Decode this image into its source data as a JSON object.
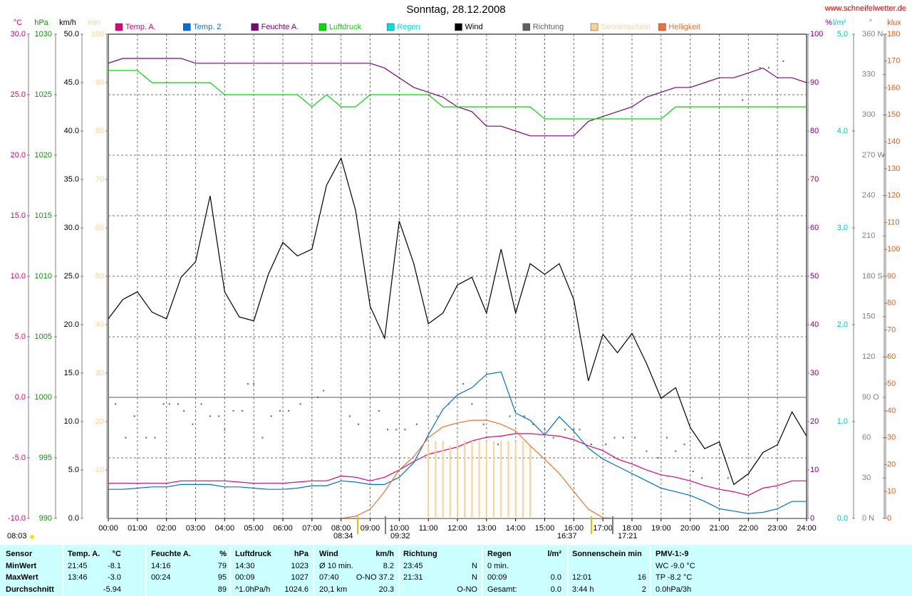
{
  "site": "www.schneifelwetter.de",
  "chart_data": {
    "type": "line",
    "title": "Sonntag, 28.12.2008",
    "grid": true,
    "xlim": [
      0,
      24
    ],
    "xticks": [
      {
        "value": 0,
        "label": "00:00"
      },
      {
        "value": 1,
        "label": "01:00"
      },
      {
        "value": 2,
        "label": "02:00"
      },
      {
        "value": 3,
        "label": "03:00"
      },
      {
        "value": 4,
        "label": "04:00"
      },
      {
        "value": 5,
        "label": "05:00"
      },
      {
        "value": 6,
        "label": "06:00"
      },
      {
        "value": 7,
        "label": "07:00"
      },
      {
        "value": 8,
        "label": "08:00"
      },
      {
        "value": 9,
        "label": "09:00"
      },
      {
        "value": 10,
        "label": "10:00"
      },
      {
        "value": 11,
        "label": "11:00"
      },
      {
        "value": 12,
        "label": "12:00"
      },
      {
        "value": 13,
        "label": "13:00"
      },
      {
        "value": 14,
        "label": "14:00"
      },
      {
        "value": 15,
        "label": "15:00"
      },
      {
        "value": 16,
        "label": "16:00"
      },
      {
        "value": 17,
        "label": "17:00"
      },
      {
        "value": 18,
        "label": "18:00"
      },
      {
        "value": 19,
        "label": "19:00"
      },
      {
        "value": 20,
        "label": "20:00"
      },
      {
        "value": 21,
        "label": "21:00"
      },
      {
        "value": 22,
        "label": "22:00"
      },
      {
        "value": 23,
        "label": "23:00"
      },
      {
        "value": 24,
        "label": "24:00"
      }
    ],
    "axes": [
      {
        "unit": "°C",
        "color": "#e0007a",
        "lim": [
          -10,
          30
        ],
        "ticks": [
          {
            "value": -10,
            "label": "-10.0"
          },
          {
            "value": -5,
            "label": "-5.0"
          },
          {
            "value": 0,
            "label": "0.0"
          },
          {
            "value": 5,
            "label": "5.0"
          },
          {
            "value": 10,
            "label": "10.0"
          },
          {
            "value": 15,
            "label": "15.0"
          },
          {
            "value": 20,
            "label": "20.0"
          },
          {
            "value": 25,
            "label": "25.0"
          },
          {
            "value": 30,
            "label": "30.0"
          }
        ]
      },
      {
        "unit": "hPa",
        "color": "#00a000",
        "lim": [
          990,
          1030
        ],
        "ticks": [
          990,
          995,
          1000,
          1005,
          1010,
          1015,
          1020,
          1025,
          1030
        ]
      },
      {
        "unit": "km/h",
        "color": "#000000",
        "lim": [
          0,
          50
        ],
        "ticks": [
          {
            "value": 0,
            "label": "0.0"
          },
          {
            "value": 5,
            "label": "5.0"
          },
          {
            "value": 10,
            "label": "10.0"
          },
          {
            "value": 15,
            "label": "15.0"
          },
          {
            "value": 20,
            "label": "20.0"
          },
          {
            "value": 25,
            "label": "25.0"
          },
          {
            "value": 30,
            "label": "30.0"
          },
          {
            "value": 35,
            "label": "35.0"
          },
          {
            "value": 40,
            "label": "40.0"
          },
          {
            "value": 45,
            "label": "45.0"
          },
          {
            "value": 50,
            "label": "50.0"
          }
        ]
      },
      {
        "unit": "min",
        "color": "#ffd090",
        "lim": [
          0,
          100
        ],
        "ticks": [
          10,
          20,
          30,
          40,
          50,
          60,
          70,
          80,
          90,
          100
        ]
      },
      {
        "unit": "%",
        "color": "#800080",
        "lim": [
          0,
          100
        ],
        "ticks": [
          0,
          10,
          20,
          30,
          40,
          50,
          60,
          70,
          80,
          90,
          100
        ]
      },
      {
        "unit": "l/m²",
        "color": "#00c8c8",
        "lim": [
          0,
          5
        ],
        "ticks": [
          {
            "value": 0,
            "label": "0.0"
          },
          {
            "value": 1,
            "label": "1.0"
          },
          {
            "value": 2,
            "label": "2.0"
          },
          {
            "value": 3,
            "label": "3.0"
          },
          {
            "value": 4,
            "label": "4.0"
          },
          {
            "value": 5,
            "label": "5.0"
          }
        ]
      },
      {
        "unit": "°",
        "color": "#808080",
        "lim": [
          0,
          360
        ],
        "ticks": [
          {
            "value": 0,
            "label": "0 N"
          },
          30,
          60,
          {
            "value": 90,
            "label": "90 O"
          },
          120,
          150,
          {
            "value": 180,
            "label": "180 S"
          },
          210,
          240,
          {
            "value": 270,
            "label": "270 W"
          },
          300,
          330,
          {
            "value": 360,
            "label": "360 N"
          }
        ]
      },
      {
        "unit": "klux",
        "color": "#e06020",
        "lim": [
          0,
          180
        ],
        "ticks": [
          0,
          10,
          20,
          30,
          40,
          50,
          60,
          70,
          80,
          90,
          100,
          110,
          120,
          130,
          140,
          150,
          160,
          170,
          180
        ]
      }
    ],
    "x": [
      0,
      0.5,
      1,
      1.5,
      2,
      2.5,
      3,
      3.5,
      4,
      4.5,
      5,
      5.5,
      6,
      6.5,
      7,
      7.5,
      8,
      8.5,
      9,
      9.5,
      10,
      10.5,
      11,
      11.5,
      12,
      12.5,
      13,
      13.5,
      14,
      14.5,
      15,
      15.5,
      16,
      16.5,
      17,
      17.5,
      18,
      18.5,
      19,
      19.5,
      20,
      20.5,
      21,
      21.5,
      22,
      22.5,
      23,
      23.5,
      24
    ],
    "series": [
      {
        "name": "Temp. A.",
        "color": "#e0007a",
        "axis": "°C",
        "values": [
          -7.1,
          -7.1,
          -7.1,
          -7.1,
          -7.1,
          -6.9,
          -6.9,
          -6.9,
          -6.9,
          -7.0,
          -7.1,
          -7.1,
          -7.1,
          -7.0,
          -6.9,
          -6.9,
          -6.5,
          -6.6,
          -6.9,
          -6.6,
          -6.0,
          -5.3,
          -4.7,
          -4.4,
          -4.1,
          -3.6,
          -3.3,
          -3.2,
          -3.0,
          -3.0,
          -3.1,
          -3.2,
          -3.5,
          -4.0,
          -4.4,
          -5.1,
          -5.5,
          -6.0,
          -6.4,
          -6.6,
          -6.9,
          -7.3,
          -7.6,
          -7.8,
          -8.1,
          -7.5,
          -7.3,
          -6.9,
          -6.9
        ]
      },
      {
        "name": "Temp. 2",
        "color": "#0070e0",
        "axis": "°C",
        "values": [
          -7.6,
          -7.6,
          -7.5,
          -7.4,
          -7.4,
          -7.2,
          -7.2,
          -7.2,
          -7.4,
          -7.4,
          -7.5,
          -7.6,
          -7.6,
          -7.5,
          -7.3,
          -7.3,
          -6.9,
          -7.0,
          -7.2,
          -7.2,
          -6.6,
          -5.4,
          -3.1,
          -1.0,
          0.2,
          0.8,
          1.9,
          2.1,
          -1.3,
          -1.9,
          -3.1,
          -1.6,
          -2.8,
          -4.2,
          -5.1,
          -5.7,
          -6.3,
          -6.9,
          -7.5,
          -7.8,
          -8.1,
          -8.6,
          -9.2,
          -9.4,
          -9.6,
          -9.5,
          -9.2,
          -8.6,
          -8.6
        ]
      },
      {
        "name": "Feuchte A.",
        "color": "#800080",
        "axis": "%",
        "values": [
          94,
          95,
          95,
          95,
          95,
          95,
          94,
          94,
          94,
          94,
          94,
          94,
          94,
          94,
          94,
          94,
          94,
          94,
          94,
          93,
          91,
          89,
          88,
          87,
          85,
          84,
          81,
          81,
          80,
          79,
          79,
          79,
          79,
          82,
          83,
          84,
          85,
          87,
          88,
          89,
          89,
          90,
          91,
          91,
          92,
          93,
          91,
          91,
          90
        ]
      },
      {
        "name": "Luftdruck",
        "color": "#00dd00",
        "axis": "hPa",
        "values": [
          1027,
          1027,
          1027,
          1026,
          1026,
          1026,
          1026,
          1026,
          1025,
          1025,
          1025,
          1025,
          1025,
          1025,
          1024,
          1025,
          1024,
          1024,
          1025,
          1025,
          1025,
          1025,
          1025,
          1024,
          1024,
          1024,
          1024,
          1024,
          1024,
          1024,
          1023,
          1023,
          1023,
          1023,
          1023,
          1023,
          1023,
          1023,
          1023,
          1024,
          1024,
          1024,
          1024,
          1024,
          1024,
          1024,
          1024,
          1024,
          1024
        ]
      },
      {
        "name": "Regen",
        "color": "#00e0e0",
        "axis": "l/m²",
        "values": [
          0,
          0,
          0,
          0,
          0,
          0,
          0,
          0,
          0,
          0,
          0,
          0,
          0,
          0,
          0,
          0,
          0,
          0,
          0,
          0,
          0,
          0,
          0,
          0,
          0,
          0,
          0,
          0,
          0,
          0,
          0,
          0,
          0,
          0,
          0,
          0,
          0,
          0,
          0,
          0,
          0,
          0,
          0,
          0,
          0,
          0,
          0,
          0,
          0
        ]
      },
      {
        "name": "Wind",
        "color": "#000000",
        "axis": "km/h",
        "values": [
          20.6,
          22.6,
          23.4,
          21.3,
          20.6,
          24.9,
          26.5,
          33.3,
          23.4,
          20.8,
          20.4,
          25.2,
          28.5,
          27.1,
          27.8,
          34.4,
          37.2,
          31.8,
          21.9,
          18.6,
          30.7,
          26.3,
          20.1,
          21.2,
          24.1,
          24.9,
          21.2,
          27.8,
          21.2,
          26.3,
          25.2,
          26.3,
          22.6,
          14.2,
          19.0,
          17.1,
          19.1,
          16.0,
          12.4,
          13.5,
          9.4,
          7.2,
          7.9,
          3.5,
          4.6,
          6.8,
          7.6,
          11.0,
          8.5
        ]
      },
      {
        "name": "Richtung",
        "color": "#606060",
        "axis": "°",
        "style": "dots",
        "x": [
          0.25,
          0.6,
          0.9,
          1.3,
          1.6,
          1.9,
          2.1,
          2.4,
          2.6,
          2.9,
          3.2,
          3.5,
          3.8,
          4.0,
          4.3,
          4.6,
          4.8,
          5.0,
          5.3,
          5.6,
          5.9,
          6.2,
          6.6,
          7.2,
          7.4,
          8.3,
          8.6,
          9.3,
          9.6,
          9.9,
          10.2,
          10.6,
          11.3,
          11.7,
          12.2,
          12.5,
          12.9,
          13.4,
          13.8,
          14.3,
          14.6,
          15.0,
          15.3,
          15.7,
          16.0,
          16.2,
          16.6,
          17.1,
          17.4,
          17.7,
          18.1,
          18.5,
          18.9,
          19.2,
          19.5,
          19.8,
          20.1,
          20.4,
          21.3,
          21.8,
          22.4,
          22.7,
          23.2
        ],
        "values": [
          85,
          60,
          76,
          60,
          60,
          85,
          85,
          85,
          80,
          70,
          85,
          76,
          76,
          66,
          80,
          80,
          100,
          100,
          60,
          76,
          80,
          80,
          85,
          90,
          95,
          76,
          70,
          80,
          66,
          66,
          66,
          70,
          76,
          85,
          100,
          85,
          70,
          55,
          76,
          76,
          70,
          66,
          60,
          66,
          66,
          66,
          55,
          55,
          60,
          60,
          60,
          50,
          45,
          60,
          50,
          55,
          35,
          30,
          30,
          311,
          335,
          335,
          340
        ]
      },
      {
        "name": "Sonnenschein",
        "color": "#ffd090",
        "axis": "min",
        "style": "bars",
        "x": [
          11,
          11.25,
          11.5,
          11.75,
          12,
          12.25,
          12.5,
          12.75,
          13,
          13.25,
          13.5,
          13.75,
          14,
          14.25,
          14.5
        ],
        "values": [
          15,
          16,
          16,
          15,
          16,
          16,
          16,
          16,
          16,
          16,
          16,
          16,
          16,
          16,
          15
        ]
      },
      {
        "name": "Helligkeit",
        "color": "#f07030",
        "axis": "klux",
        "values": [
          0,
          0,
          0,
          0,
          0,
          0,
          0,
          0,
          0,
          0,
          0,
          0,
          0,
          0,
          0,
          0,
          0,
          0.8,
          3.4,
          10,
          18,
          23,
          30,
          34,
          35.5,
          36.5,
          36.5,
          35,
          32.5,
          27,
          22,
          16.7,
          10,
          3.4,
          0.3,
          0,
          0,
          0,
          0,
          0,
          0,
          0,
          0,
          0,
          0,
          0,
          0,
          0,
          0
        ]
      }
    ],
    "annotations": [
      "08:03",
      "08:34",
      "09:32",
      "16:37",
      "17:21"
    ]
  },
  "table": {
    "labels": [
      "Sensor",
      "MinWert",
      "MaxWert",
      "Durchschnitt"
    ],
    "groups": [
      {
        "header": [
          "Temp. A.",
          "°C"
        ],
        "rows": [
          [
            "21:45",
            "-8.1"
          ],
          [
            "13:46",
            "-3.0"
          ],
          [
            null,
            "-5.94"
          ]
        ]
      },
      {
        "header": [
          "Feuchte A.",
          "%"
        ],
        "rows": [
          [
            "14:16",
            "79"
          ],
          [
            "00:24",
            "95"
          ],
          [
            null,
            "89"
          ]
        ]
      },
      {
        "header": [
          "Luftdruck",
          "hPa"
        ],
        "rows": [
          [
            "14:30",
            "1023"
          ],
          [
            "00:09",
            "1027"
          ],
          [
            "^1.0hPa/h",
            "1024.6"
          ]
        ]
      },
      {
        "header": [
          "Wind",
          "km/h"
        ],
        "rows": [
          [
            "Ø 10 min.",
            "8.2"
          ],
          [
            "07:40",
            "O-NO 37.2"
          ],
          [
            "20,1 km",
            "20.3"
          ]
        ]
      },
      {
        "header": [
          "Richtung",
          null
        ],
        "rows": [
          [
            "23:45",
            "N"
          ],
          [
            "21:31",
            "N"
          ],
          [
            null,
            "O-NO"
          ]
        ]
      },
      {
        "header": [
          "Regen",
          "l/m²"
        ],
        "rows": [
          [
            "0 min.",
            null
          ],
          [
            "00:09",
            "0.0"
          ],
          [
            "Gesamt:",
            "0.0"
          ]
        ]
      },
      {
        "header": [
          "Sonnenschein min",
          null
        ],
        "rows": [
          [
            null,
            null
          ],
          [
            "12:01",
            "16"
          ],
          [
            "3:44 h",
            "2"
          ]
        ]
      },
      {
        "header": [
          "PMV-1:-9",
          null
        ],
        "rows": [
          [
            "WC -9.0 °C",
            null
          ],
          [
            "TP -8.2 °C",
            null
          ],
          [
            "0.0hPa/3h",
            null
          ]
        ]
      }
    ]
  }
}
